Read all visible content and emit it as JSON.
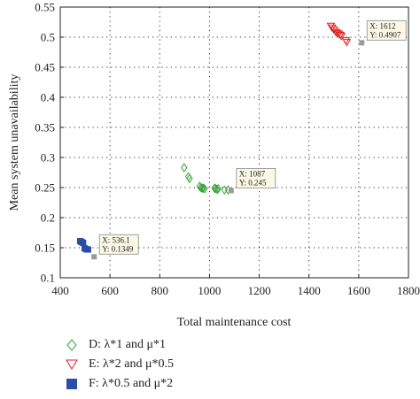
{
  "chart_data": {
    "type": "scatter",
    "title": "",
    "xlabel": "Total maintenance cost",
    "ylabel": "Mean system unavailability",
    "xlim": [
      400,
      1800
    ],
    "ylim": [
      0.1,
      0.55
    ],
    "x_ticks": [
      "400",
      "600",
      "800",
      "1000",
      "1200",
      "1400",
      "1600",
      "1800"
    ],
    "y_ticks": [
      "0.1",
      "0.15",
      "0.2",
      "0.25",
      "0.3",
      "0.35",
      "0.4",
      "0.45",
      "0.5",
      "0.55"
    ],
    "grid": "dotted",
    "series": [
      {
        "name": "D: λ*1 and μ*1",
        "marker": "diamond",
        "color": "#3aa43a",
        "points": [
          [
            898,
            0.283
          ],
          [
            915,
            0.268
          ],
          [
            920,
            0.265
          ],
          [
            960,
            0.252
          ],
          [
            965,
            0.25
          ],
          [
            970,
            0.249
          ],
          [
            975,
            0.249
          ],
          [
            980,
            0.248
          ],
          [
            1020,
            0.249
          ],
          [
            1025,
            0.248
          ],
          [
            1030,
            0.247
          ],
          [
            1035,
            0.248
          ],
          [
            1060,
            0.246
          ],
          [
            1075,
            0.246
          ]
        ]
      },
      {
        "name": "E: λ*2 and μ*0.5",
        "marker": "triangle-down",
        "color": "#e02020",
        "points": [
          [
            1488,
            0.518
          ],
          [
            1493,
            0.515
          ],
          [
            1500,
            0.512
          ],
          [
            1508,
            0.508
          ],
          [
            1513,
            0.506
          ],
          [
            1520,
            0.505
          ],
          [
            1526,
            0.503
          ],
          [
            1530,
            0.501
          ],
          [
            1548,
            0.494
          ],
          [
            1552,
            0.491
          ]
        ]
      },
      {
        "name": "F: λ*0.5 and μ*2",
        "marker": "square",
        "color": "#2a4ea6",
        "points": [
          [
            480,
            0.161
          ],
          [
            484,
            0.16
          ],
          [
            488,
            0.159
          ],
          [
            492,
            0.158
          ],
          [
            498,
            0.149
          ],
          [
            503,
            0.148
          ],
          [
            508,
            0.147
          ],
          [
            512,
            0.147
          ]
        ]
      }
    ],
    "annotations": [
      {
        "x": 536.1,
        "y": 0.1349,
        "x_text": "X: 536.1",
        "y_text": "Y: 0.1349",
        "anchor": "right"
      },
      {
        "x": 1087,
        "y": 0.245,
        "x_text": "X: 1087",
        "y_text": "Y: 0.245",
        "anchor": "right"
      },
      {
        "x": 1612,
        "y": 0.4907,
        "x_text": "X: 1612",
        "y_text": "Y: 0.4907",
        "anchor": "right"
      }
    ]
  }
}
